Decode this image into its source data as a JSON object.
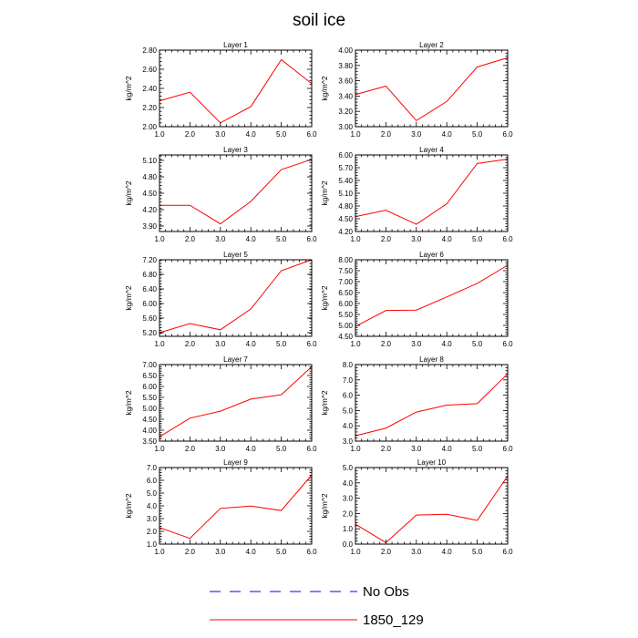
{
  "chart_data": {
    "title": "soil ice",
    "type": "line",
    "ylabel": "kg/m^2",
    "legend": [
      {
        "name": "No Obs",
        "color": "#0000ff",
        "style": "dashed"
      },
      {
        "name": "1850_129",
        "color": "#ff0000",
        "style": "solid"
      }
    ],
    "panels": [
      {
        "title": "Layer 1",
        "x": [
          1,
          2,
          3,
          4,
          5,
          6
        ],
        "values": [
          2.27,
          2.36,
          2.04,
          2.21,
          2.7,
          2.45
        ],
        "ylim": [
          2.0,
          2.8
        ],
        "yticks": [
          "2.00",
          "2.20",
          "2.40",
          "2.60",
          "2.80"
        ],
        "xticks": [
          "1.0",
          "2.0",
          "3.0",
          "4.0",
          "5.0",
          "6.0"
        ]
      },
      {
        "title": "Layer 2",
        "x": [
          1,
          2,
          3,
          4,
          5,
          6
        ],
        "values": [
          3.42,
          3.53,
          3.08,
          3.33,
          3.78,
          3.9
        ],
        "ylim": [
          3.0,
          4.0
        ],
        "yticks": [
          "3.00",
          "3.20",
          "3.40",
          "3.60",
          "3.80",
          "4.00"
        ],
        "xticks": [
          "1.0",
          "2.0",
          "3.0",
          "4.0",
          "5.0",
          "6.0"
        ]
      },
      {
        "title": "Layer 3",
        "x": [
          1,
          2,
          3,
          4,
          5,
          6
        ],
        "values": [
          4.28,
          4.28,
          3.94,
          4.35,
          4.93,
          5.12
        ],
        "ylim": [
          3.8,
          5.2
        ],
        "ytickvals": [
          3.9,
          4.2,
          4.5,
          4.8,
          5.1
        ],
        "yticks": [
          "3.90",
          "4.20",
          "4.50",
          "4.80",
          "5.10"
        ],
        "xticks": [
          "1.0",
          "2.0",
          "3.0",
          "4.0",
          "5.0",
          "6.0"
        ]
      },
      {
        "title": "Layer 4",
        "x": [
          1,
          2,
          3,
          4,
          5,
          6
        ],
        "values": [
          4.55,
          4.7,
          4.37,
          4.85,
          5.8,
          5.9
        ],
        "ylim": [
          4.2,
          6.0
        ],
        "ytickvals": [
          4.2,
          4.5,
          4.8,
          5.1,
          5.4,
          5.7,
          6.0
        ],
        "yticks": [
          "4.20",
          "4.50",
          "4.80",
          "5.10",
          "5.40",
          "5.70",
          "6.00"
        ],
        "xticks": [
          "1.0",
          "2.0",
          "3.0",
          "4.0",
          "5.0",
          "6.0"
        ]
      },
      {
        "title": "Layer 5",
        "x": [
          1,
          2,
          3,
          4,
          5,
          6
        ],
        "values": [
          5.2,
          5.45,
          5.28,
          5.85,
          6.9,
          7.2
        ],
        "ylim": [
          5.1,
          7.2
        ],
        "ytickvals": [
          5.2,
          5.6,
          6.0,
          6.4,
          6.8,
          7.2
        ],
        "yticks": [
          "5.20",
          "5.60",
          "6.00",
          "6.40",
          "6.80",
          "7.20"
        ],
        "xticks": [
          "1.0",
          "2.0",
          "3.0",
          "4.0",
          "5.0",
          "6.0"
        ]
      },
      {
        "title": "Layer 6",
        "x": [
          1,
          2,
          3,
          4,
          5,
          6
        ],
        "values": [
          4.95,
          5.68,
          5.7,
          6.3,
          6.92,
          7.75
        ],
        "ylim": [
          4.5,
          8.0
        ],
        "ytickvals": [
          4.5,
          5.0,
          5.5,
          6.0,
          6.5,
          7.0,
          7.5,
          8.0
        ],
        "yticks": [
          "4.50",
          "5.00",
          "5.50",
          "6.00",
          "6.50",
          "7.00",
          "7.50",
          "8.00"
        ],
        "xticks": [
          "1.0",
          "2.0",
          "3.0",
          "4.0",
          "5.0",
          "6.0"
        ]
      },
      {
        "title": "Layer 7",
        "x": [
          1,
          2,
          3,
          4,
          5,
          6
        ],
        "values": [
          3.7,
          4.55,
          4.87,
          5.42,
          5.62,
          6.9
        ],
        "ylim": [
          3.5,
          7.0
        ],
        "ytickvals": [
          3.5,
          4.0,
          4.5,
          5.0,
          5.5,
          6.0,
          6.5,
          7.0
        ],
        "yticks": [
          "3.50",
          "4.00",
          "4.50",
          "5.00",
          "5.50",
          "6.00",
          "6.50",
          "7.00"
        ],
        "xticks": [
          "1.0",
          "2.0",
          "3.0",
          "4.0",
          "5.0",
          "6.0"
        ]
      },
      {
        "title": "Layer 8",
        "x": [
          1,
          2,
          3,
          4,
          5,
          6
        ],
        "values": [
          3.35,
          3.85,
          4.9,
          5.35,
          5.45,
          7.4
        ],
        "ylim": [
          3.0,
          8.0
        ],
        "ytickvals": [
          3,
          4,
          5,
          6,
          7,
          8
        ],
        "yticks": [
          "3.0",
          "4.0",
          "5.0",
          "6.0",
          "7.0",
          "8.0"
        ],
        "xticks": [
          "1.0",
          "2.0",
          "3.0",
          "4.0",
          "5.0",
          "6.0"
        ]
      },
      {
        "title": "Layer 9",
        "x": [
          1,
          2,
          3,
          4,
          5,
          6
        ],
        "values": [
          2.3,
          1.45,
          3.8,
          3.98,
          3.63,
          6.42
        ],
        "ylim": [
          1.0,
          7.0
        ],
        "ytickvals": [
          1,
          2,
          3,
          4,
          5,
          6,
          7
        ],
        "yticks": [
          "1.0",
          "2.0",
          "3.0",
          "4.0",
          "5.0",
          "6.0",
          "7.0"
        ],
        "xticks": [
          "1.0",
          "2.0",
          "3.0",
          "4.0",
          "5.0",
          "6.0"
        ]
      },
      {
        "title": "Layer 10",
        "x": [
          1,
          2,
          3,
          4,
          5,
          6
        ],
        "values": [
          1.3,
          0.1,
          1.9,
          1.95,
          1.55,
          4.45
        ],
        "ylim": [
          0.0,
          5.0
        ],
        "ytickvals": [
          0,
          1,
          2,
          3,
          4,
          5
        ],
        "yticks": [
          "0.0",
          "1.0",
          "2.0",
          "3.0",
          "4.0",
          "5.0"
        ],
        "xticks": [
          "1.0",
          "2.0",
          "3.0",
          "4.0",
          "5.0",
          "6.0"
        ]
      }
    ]
  }
}
